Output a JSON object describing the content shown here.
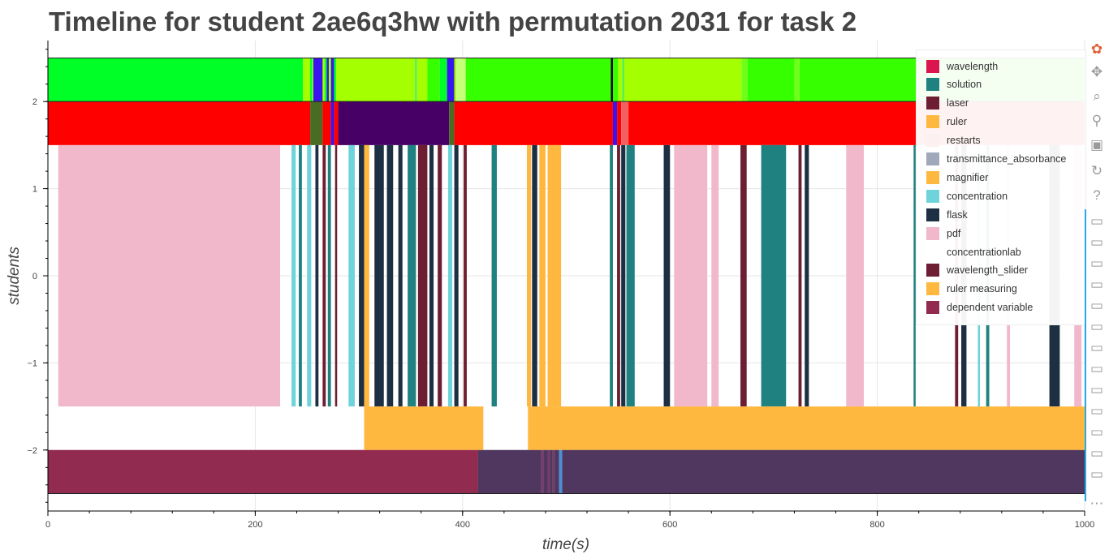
{
  "chart_data": {
    "type": "bar",
    "title": "Timeline for student 2ae6q3hw with permutation 2031 for task 2",
    "xlabel": "time(s)",
    "ylabel": "students",
    "xlim": [
      0,
      1000
    ],
    "ylim": [
      -2.7,
      2.7
    ],
    "x_ticks": [
      0,
      200,
      400,
      600,
      800,
      1000
    ],
    "y_ticks": [
      2,
      1,
      0,
      -1,
      -2
    ],
    "x_tick_labels": [
      "0",
      "200",
      "400",
      "600",
      "800",
      "1000"
    ],
    "y_tick_labels": [
      "2",
      "1",
      "0",
      "−1",
      "−2"
    ],
    "grid": true,
    "legend_position": "top-right",
    "legend": [
      {
        "label": "wavelength",
        "color": "#dc1450"
      },
      {
        "label": "solution",
        "color": "#1f8280"
      },
      {
        "label": "laser",
        "color": "#6e1e32"
      },
      {
        "label": "ruler",
        "color": "#ffb83f"
      },
      {
        "label": "restarts",
        "color": "#fdf0f0"
      },
      {
        "label": "transmittance_absorbance",
        "color": "#9fa9b9"
      },
      {
        "label": "magnifier",
        "color": "#ffb83f"
      },
      {
        "label": "concentration",
        "color": "#6fd3dc"
      },
      {
        "label": "flask",
        "color": "#1c2f43"
      },
      {
        "label": "pdf",
        "color": "#f0b8ca"
      },
      {
        "label": "concentrationlab",
        "color": "#ffffff"
      },
      {
        "label": "wavelength_slider",
        "color": "#6e1e32"
      },
      {
        "label": "ruler measuring",
        "color": "#ffb83f"
      },
      {
        "label": "dependent variable",
        "color": "#922b50"
      }
    ],
    "rows": [
      {
        "y_range": [
          2,
          2.5
        ],
        "segments": [
          {
            "start": 0,
            "end": 246,
            "color": "#00ff26"
          },
          {
            "start": 246,
            "end": 253,
            "color": "#a4ff00"
          },
          {
            "start": 253,
            "end": 255,
            "color": "#00ff26"
          },
          {
            "start": 255,
            "end": 256,
            "color": "#a4ff00"
          },
          {
            "start": 256,
            "end": 265,
            "color": "#3a14f0"
          },
          {
            "start": 265,
            "end": 267,
            "color": "#a4ff00"
          },
          {
            "start": 267,
            "end": 269,
            "color": "#00ff26"
          },
          {
            "start": 269,
            "end": 271,
            "color": "#3a14f0"
          },
          {
            "start": 271,
            "end": 273,
            "color": "#a4ff00"
          },
          {
            "start": 273,
            "end": 276,
            "color": "#3a14f0"
          },
          {
            "start": 276,
            "end": 278,
            "color": "#00ff26"
          },
          {
            "start": 278,
            "end": 354,
            "color": "#a4ff00"
          },
          {
            "start": 354,
            "end": 356,
            "color": "#55f060"
          },
          {
            "start": 356,
            "end": 366,
            "color": "#a4ff00"
          },
          {
            "start": 366,
            "end": 378,
            "color": "#36ff00"
          },
          {
            "start": 378,
            "end": 385,
            "color": "#00ff26"
          },
          {
            "start": 385,
            "end": 392,
            "color": "#3a14f0"
          },
          {
            "start": 392,
            "end": 394,
            "color": "#a4ff00"
          },
          {
            "start": 394,
            "end": 403,
            "color": "#c6ff78"
          },
          {
            "start": 403,
            "end": 543,
            "color": "#36ff00"
          },
          {
            "start": 543,
            "end": 545,
            "color": "#000000"
          },
          {
            "start": 545,
            "end": 550,
            "color": "#36ff00"
          },
          {
            "start": 550,
            "end": 554,
            "color": "#a4ff00"
          },
          {
            "start": 554,
            "end": 556,
            "color": "#55f060"
          },
          {
            "start": 556,
            "end": 669,
            "color": "#a4ff00"
          },
          {
            "start": 669,
            "end": 675,
            "color": "#70ff18"
          },
          {
            "start": 675,
            "end": 720,
            "color": "#36ff00"
          },
          {
            "start": 720,
            "end": 725,
            "color": "#70ff18"
          },
          {
            "start": 725,
            "end": 1000,
            "color": "#36ff00"
          }
        ]
      },
      {
        "y_range": [
          1.5,
          2
        ],
        "segments": [
          {
            "start": 0,
            "end": 253,
            "color": "#ff0000"
          },
          {
            "start": 253,
            "end": 265,
            "color": "#4a6b22"
          },
          {
            "start": 265,
            "end": 273,
            "color": "#ff0000"
          },
          {
            "start": 273,
            "end": 276,
            "color": "#3a14f0"
          },
          {
            "start": 276,
            "end": 280,
            "color": "#ff0000"
          },
          {
            "start": 280,
            "end": 387,
            "color": "#460066"
          },
          {
            "start": 387,
            "end": 392,
            "color": "#4a6b22"
          },
          {
            "start": 392,
            "end": 545,
            "color": "#ff0000"
          },
          {
            "start": 545,
            "end": 549,
            "color": "#3a14f0"
          },
          {
            "start": 549,
            "end": 553,
            "color": "#ff0000"
          },
          {
            "start": 553,
            "end": 560,
            "color": "#f26060"
          },
          {
            "start": 560,
            "end": 1000,
            "color": "#ff0000"
          }
        ]
      },
      {
        "y_range": [
          -1.5,
          1.5
        ],
        "segments": [
          {
            "start": 10,
            "end": 224,
            "color": "#f0b8ca"
          },
          {
            "start": 235,
            "end": 239,
            "color": "#6fd3dc"
          },
          {
            "start": 242,
            "end": 245,
            "color": "#1f8280"
          },
          {
            "start": 250,
            "end": 254,
            "color": "#6fd3dc"
          },
          {
            "start": 258,
            "end": 261,
            "color": "#1c2f43"
          },
          {
            "start": 265,
            "end": 268,
            "color": "#6e1e32"
          },
          {
            "start": 270,
            "end": 273,
            "color": "#1f8280"
          },
          {
            "start": 277,
            "end": 279,
            "color": "#6e1e32"
          },
          {
            "start": 290,
            "end": 296,
            "color": "#6fd3dc"
          },
          {
            "start": 300,
            "end": 305,
            "color": "#1c2f43"
          },
          {
            "start": 305,
            "end": 310,
            "color": "#ffb83f"
          },
          {
            "start": 315,
            "end": 324,
            "color": "#1c2f43"
          },
          {
            "start": 327,
            "end": 333,
            "color": "#1c2f43"
          },
          {
            "start": 338,
            "end": 342,
            "color": "#1c2f43"
          },
          {
            "start": 347,
            "end": 355,
            "color": "#1f8280"
          },
          {
            "start": 357,
            "end": 366,
            "color": "#6e1e32"
          },
          {
            "start": 368,
            "end": 372,
            "color": "#1c2f43"
          },
          {
            "start": 376,
            "end": 380,
            "color": "#6e1e32"
          },
          {
            "start": 386,
            "end": 390,
            "color": "#6fd3dc"
          },
          {
            "start": 392,
            "end": 396,
            "color": "#1c2f43"
          },
          {
            "start": 401,
            "end": 404,
            "color": "#6e1e32"
          },
          {
            "start": 428,
            "end": 433,
            "color": "#1f8280"
          },
          {
            "start": 462,
            "end": 466,
            "color": "#ffb83f"
          },
          {
            "start": 467,
            "end": 472,
            "color": "#1c2f43"
          },
          {
            "start": 474,
            "end": 480,
            "color": "#ffb83f"
          },
          {
            "start": 482,
            "end": 495,
            "color": "#ffb83f"
          },
          {
            "start": 542,
            "end": 545,
            "color": "#1f8280"
          },
          {
            "start": 549,
            "end": 552,
            "color": "#6e1e32"
          },
          {
            "start": 553,
            "end": 557,
            "color": "#1c2f43"
          },
          {
            "start": 558,
            "end": 566,
            "color": "#1f8280"
          },
          {
            "start": 594,
            "end": 600,
            "color": "#1c2f43"
          },
          {
            "start": 604,
            "end": 636,
            "color": "#f0b8ca"
          },
          {
            "start": 640,
            "end": 647,
            "color": "#f0b8ca"
          },
          {
            "start": 668,
            "end": 674,
            "color": "#6e1e32"
          },
          {
            "start": 688,
            "end": 712,
            "color": "#1f8280"
          },
          {
            "start": 724,
            "end": 727,
            "color": "#6e1e32"
          },
          {
            "start": 730,
            "end": 734,
            "color": "#1c2f43"
          },
          {
            "start": 770,
            "end": 787,
            "color": "#f0b8ca"
          },
          {
            "start": 835,
            "end": 837,
            "color": "#1f8280"
          },
          {
            "start": 875,
            "end": 878,
            "color": "#6e1e32"
          },
          {
            "start": 881,
            "end": 886,
            "color": "#1c2f43"
          },
          {
            "start": 897,
            "end": 899,
            "color": "#6fd3dc"
          },
          {
            "start": 905,
            "end": 908,
            "color": "#1f8280"
          },
          {
            "start": 925,
            "end": 928,
            "color": "#f0b8ca"
          },
          {
            "start": 966,
            "end": 976,
            "color": "#1c2f43"
          },
          {
            "start": 990,
            "end": 997,
            "color": "#f0b8ca"
          }
        ]
      },
      {
        "y_range": [
          -2,
          -1.5
        ],
        "segments": [
          {
            "start": 305,
            "end": 420,
            "color": "#ffb83f"
          },
          {
            "start": 463,
            "end": 1000,
            "color": "#ffb83f"
          }
        ]
      },
      {
        "y_range": [
          -2.5,
          -2
        ],
        "segments": [
          {
            "start": 0,
            "end": 415,
            "color": "#922b50"
          },
          {
            "start": 415,
            "end": 476,
            "color": "#50375f"
          },
          {
            "start": 476,
            "end": 478,
            "color": "#7a3a6a"
          },
          {
            "start": 478,
            "end": 482,
            "color": "#50375f"
          },
          {
            "start": 482,
            "end": 484,
            "color": "#7a3a6a"
          },
          {
            "start": 484,
            "end": 487,
            "color": "#50375f"
          },
          {
            "start": 487,
            "end": 489,
            "color": "#7a3a6a"
          },
          {
            "start": 489,
            "end": 493,
            "color": "#50375f"
          },
          {
            "start": 493,
            "end": 496,
            "color": "#4a90d6"
          },
          {
            "start": 496,
            "end": 1000,
            "color": "#50375f"
          }
        ]
      }
    ]
  },
  "toolbar": {
    "tools": [
      {
        "name": "bokeh-logo-icon",
        "glyph": "✿",
        "color": "#e0603a",
        "interactable": false
      },
      {
        "name": "pan-icon",
        "glyph": "✥",
        "color": "#9a9a9a",
        "interactable": true
      },
      {
        "name": "box-zoom-icon",
        "glyph": "⌕",
        "color": "#9a9a9a",
        "interactable": true
      },
      {
        "name": "wheel-zoom-icon",
        "glyph": "⚲",
        "color": "#9a9a9a",
        "interactable": true
      },
      {
        "name": "save-icon",
        "glyph": "▣",
        "color": "#9a9a9a",
        "interactable": true
      },
      {
        "name": "reset-icon",
        "glyph": "↻",
        "color": "#9a9a9a",
        "interactable": true
      },
      {
        "name": "help-icon",
        "glyph": "?",
        "color": "#9a9a9a",
        "interactable": true
      },
      {
        "name": "hover-icon",
        "glyph": "▭",
        "color": "#9a9a9a",
        "interactable": true
      },
      {
        "name": "hover-icon",
        "glyph": "▭",
        "color": "#9a9a9a",
        "interactable": true
      },
      {
        "name": "hover-icon",
        "glyph": "▭",
        "color": "#9a9a9a",
        "interactable": true
      },
      {
        "name": "hover-icon",
        "glyph": "▭",
        "color": "#9a9a9a",
        "interactable": true
      },
      {
        "name": "hover-icon",
        "glyph": "▭",
        "color": "#9a9a9a",
        "interactable": true
      },
      {
        "name": "hover-icon",
        "glyph": "▭",
        "color": "#9a9a9a",
        "interactable": true
      },
      {
        "name": "hover-icon",
        "glyph": "▭",
        "color": "#9a9a9a",
        "interactable": true
      },
      {
        "name": "hover-icon",
        "glyph": "▭",
        "color": "#9a9a9a",
        "interactable": true
      },
      {
        "name": "hover-icon",
        "glyph": "▭",
        "color": "#9a9a9a",
        "interactable": true
      },
      {
        "name": "hover-icon",
        "glyph": "▭",
        "color": "#9a9a9a",
        "interactable": true
      },
      {
        "name": "hover-icon",
        "glyph": "▭",
        "color": "#9a9a9a",
        "interactable": true
      },
      {
        "name": "hover-icon",
        "glyph": "▭",
        "color": "#9a9a9a",
        "interactable": true
      },
      {
        "name": "hover-icon",
        "glyph": "▭",
        "color": "#9a9a9a",
        "interactable": true
      },
      {
        "name": "more-icon",
        "glyph": "⋯",
        "color": "#9a9a9a",
        "interactable": true
      }
    ]
  }
}
